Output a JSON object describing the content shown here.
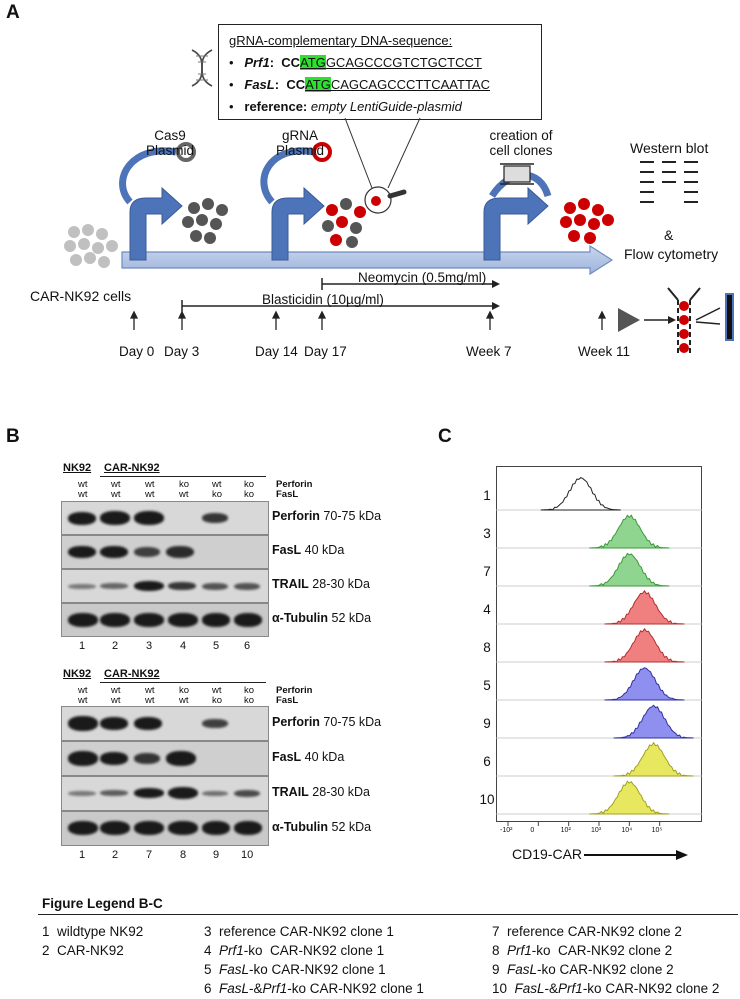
{
  "panelA": {
    "letter": "A",
    "gene_box": {
      "title": "gRNA-complementary DNA-sequence:",
      "prf1_label": "Prf1",
      "prf1_prefix": "CC",
      "prf1_hl": "ATG",
      "prf1_seq": "GCAGCCCGTCTGCTCCT",
      "fasl_label": "FasL",
      "fasl_prefix": "CC",
      "fasl_hl": "ATG",
      "fasl_seq": "CAGCAGCCCTTCAATTAC",
      "reference_label": "reference:",
      "reference_value": "empty LentiGuide-plasmid"
    },
    "cas9_label_1": "Cas9",
    "cas9_label_2": "Plasmid",
    "grna_label_1": "gRNA",
    "grna_label_2": "Plasmid",
    "clones_label_1": "creation of",
    "clones_label_2": "cell clones",
    "western_label": "Western blot",
    "amp_label": "&",
    "flow_label": "Flow cytometry",
    "cells_label": "CAR-NK92 cells",
    "neomycin_label": "Neomycin (0.5mg/ml)",
    "blasticidin_label": "Blasticidin (10µg/ml)",
    "timepoints": [
      "Day 0",
      "Day 3",
      "Day 14",
      "Day 17",
      "Week 7",
      "Week 11"
    ]
  },
  "panelB": {
    "letter": "B",
    "blots": [
      {
        "group1": "NK92",
        "group2": "CAR-NK92",
        "perforin_status": [
          "wt",
          "wt",
          "wt",
          "ko",
          "wt",
          "ko"
        ],
        "fasl_status": [
          "wt",
          "wt",
          "wt",
          "wt",
          "ko",
          "ko"
        ],
        "status_labels": [
          "Perforin",
          "FasL"
        ],
        "rows": [
          {
            "name": "Perforin",
            "size": "70-75 kDa"
          },
          {
            "name": "FasL",
            "size": "40 kDa"
          },
          {
            "name": "TRAIL",
            "size": "28-30 kDa"
          },
          {
            "name": "α-Tubulin",
            "size": "52 kDa"
          }
        ],
        "lanes": [
          "1",
          "2",
          "3",
          "4",
          "5",
          "6"
        ]
      },
      {
        "group1": "NK92",
        "group2": "CAR-NK92",
        "perforin_status": [
          "wt",
          "wt",
          "wt",
          "ko",
          "wt",
          "ko"
        ],
        "fasl_status": [
          "wt",
          "wt",
          "wt",
          "wt",
          "ko",
          "ko"
        ],
        "status_labels": [
          "Perforin",
          "FasL"
        ],
        "rows": [
          {
            "name": "Perforin",
            "size": "70-75 kDa"
          },
          {
            "name": "FasL",
            "size": "40 kDa"
          },
          {
            "name": "TRAIL",
            "size": "28-30 kDa"
          },
          {
            "name": "α-Tubulin",
            "size": "52 kDa"
          }
        ],
        "lanes": [
          "1",
          "2",
          "7",
          "8",
          "9",
          "10"
        ]
      }
    ]
  },
  "panelC": {
    "letter": "C",
    "xlabel": "CD19-CAR",
    "tick_labels": [
      "-10²",
      "0",
      "10²",
      "10³",
      "10⁴",
      "10⁵"
    ],
    "histograms": [
      {
        "label": "1",
        "color": "#ffffff",
        "edge": "#222222",
        "peak_decade": 1.4
      },
      {
        "label": "3",
        "color": "#8fd48f",
        "edge": "#3a9a3a",
        "peak_decade": 3.0
      },
      {
        "label": "7",
        "color": "#8fd48f",
        "edge": "#3a9a3a",
        "peak_decade": 3.0
      },
      {
        "label": "4",
        "color": "#f08080",
        "edge": "#b03030",
        "peak_decade": 3.5
      },
      {
        "label": "8",
        "color": "#f08080",
        "edge": "#b03030",
        "peak_decade": 3.5
      },
      {
        "label": "5",
        "color": "#8f8fef",
        "edge": "#3030a0",
        "peak_decade": 3.5
      },
      {
        "label": "9",
        "color": "#8f8fef",
        "edge": "#3030a0",
        "peak_decade": 3.8
      },
      {
        "label": "6",
        "color": "#e8e860",
        "edge": "#a0a020",
        "peak_decade": 3.8
      },
      {
        "label": "10",
        "color": "#e8e860",
        "edge": "#a0a020",
        "peak_decade": 3.0
      }
    ]
  },
  "legend": {
    "title": "Figure Legend B-C",
    "items": [
      {
        "num": "1",
        "pre": "",
        "ital": "",
        "text": "wildtype NK92"
      },
      {
        "num": "2",
        "pre": "",
        "ital": "",
        "text": "CAR-NK92"
      },
      {
        "num": "3",
        "pre": "",
        "ital": "",
        "text": "reference CAR-NK92 clone 1"
      },
      {
        "num": "4",
        "pre": "",
        "ital": "Prf1",
        "text": "-ko  CAR-NK92 clone 1"
      },
      {
        "num": "5",
        "pre": "",
        "ital": "FasL",
        "text": "-ko CAR-NK92 clone 1"
      },
      {
        "num": "6",
        "pre": "",
        "ital": "FasL",
        "text": "-&",
        "ital2": "Prf1",
        "text2": "-ko CAR-NK92 clone 1"
      },
      {
        "num": "7",
        "pre": "",
        "ital": "",
        "text": "reference CAR-NK92 clone 2"
      },
      {
        "num": "8",
        "pre": "",
        "ital": "Prf1",
        "text": "-ko  CAR-NK92 clone 2"
      },
      {
        "num": "9",
        "pre": "",
        "ital": "FasL",
        "text": "-ko CAR-NK92 clone 2"
      },
      {
        "num": "10",
        "pre": "",
        "ital": "FasL",
        "text": "-&",
        "ital2": "Prf1",
        "text2": "-ko CAR-NK92 clone 2"
      }
    ]
  }
}
